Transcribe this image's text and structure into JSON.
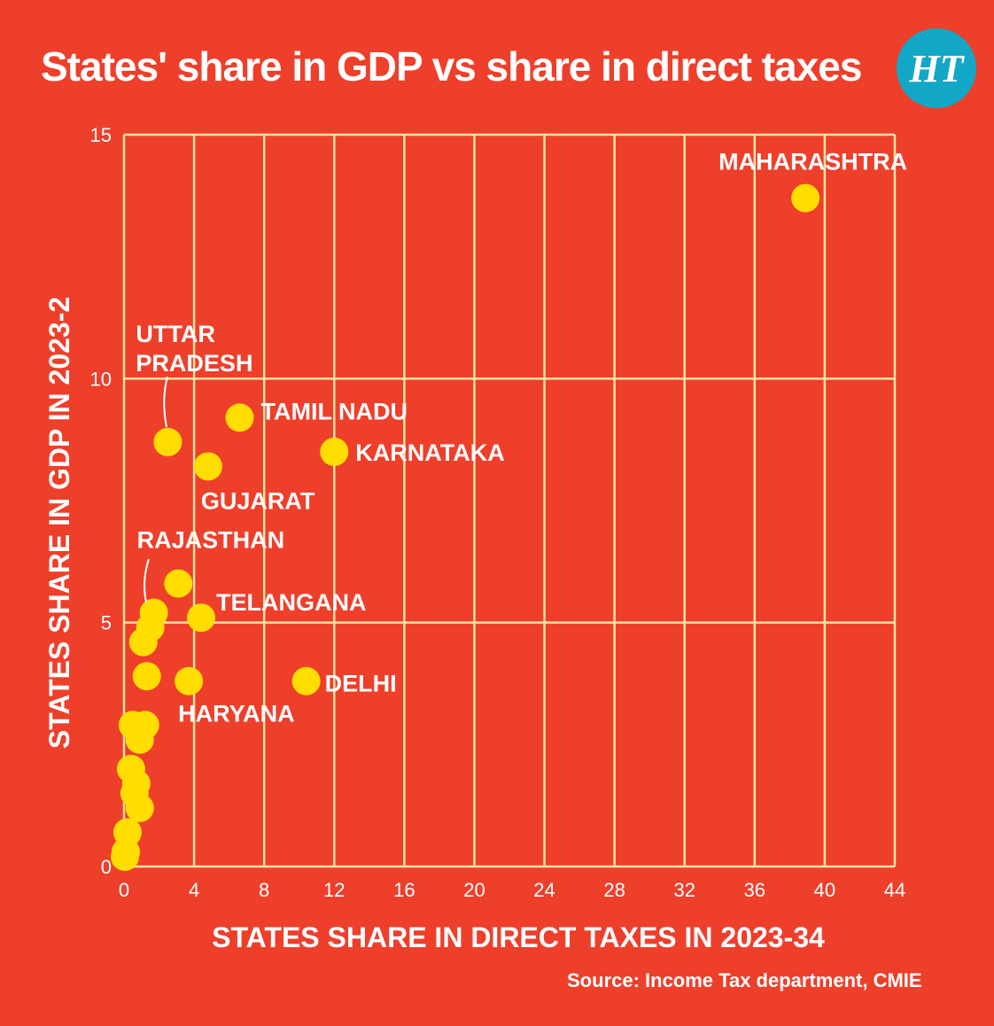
{
  "title": "States' share in GDP vs share in direct taxes",
  "logo_text": "HT",
  "source": "Source: Income Tax department, CMIE",
  "colors": {
    "background": "#EE3F2B",
    "grid": "#F6E3A1",
    "point": "#FFDD00",
    "logo": "#12A7C7",
    "text": "#FFFFFF"
  },
  "chart_data": {
    "type": "scatter",
    "xlabel": "STATES SHARE IN DIRECT TAXES IN 2023-34",
    "ylabel": "STATES SHARE IN GDP IN 2023-2",
    "xlim": [
      0,
      44
    ],
    "ylim": [
      0,
      15
    ],
    "xticks": [
      0,
      4,
      8,
      12,
      16,
      20,
      24,
      28,
      32,
      36,
      40,
      44
    ],
    "yticks": [
      0,
      5,
      10,
      15
    ],
    "grid": true,
    "points": [
      {
        "label": "MAHARASHTRA",
        "x": 38.9,
        "y": 13.7
      },
      {
        "label": "TAMIL NADU",
        "x": 6.6,
        "y": 9.2
      },
      {
        "label": "UTTAR PRADESH",
        "x": 2.5,
        "y": 8.7
      },
      {
        "label": "KARNATAKA",
        "x": 12.0,
        "y": 8.5
      },
      {
        "label": "GUJARAT",
        "x": 4.8,
        "y": 8.2
      },
      {
        "label": "RAJASTHAN",
        "x": 1.7,
        "y": 5.2
      },
      {
        "label": "TELANGANA",
        "x": 4.4,
        "y": 5.1
      },
      {
        "label": "DELHI",
        "x": 10.4,
        "y": 3.8
      },
      {
        "label": "HARYANA",
        "x": 3.7,
        "y": 3.8
      },
      {
        "label": "",
        "x": 3.1,
        "y": 5.8
      },
      {
        "label": "",
        "x": 1.5,
        "y": 4.9
      },
      {
        "label": "",
        "x": 1.1,
        "y": 4.6
      },
      {
        "label": "",
        "x": 1.3,
        "y": 3.9
      },
      {
        "label": "",
        "x": 0.5,
        "y": 2.9
      },
      {
        "label": "",
        "x": 1.2,
        "y": 2.9
      },
      {
        "label": "",
        "x": 0.9,
        "y": 2.6
      },
      {
        "label": "",
        "x": 0.4,
        "y": 2.0
      },
      {
        "label": "",
        "x": 0.7,
        "y": 1.7
      },
      {
        "label": "",
        "x": 0.6,
        "y": 1.5
      },
      {
        "label": "",
        "x": 0.9,
        "y": 1.2
      },
      {
        "label": "",
        "x": 0.2,
        "y": 0.7
      },
      {
        "label": "",
        "x": 0.1,
        "y": 0.3
      },
      {
        "label": "",
        "x": 0.05,
        "y": 0.2
      }
    ]
  }
}
